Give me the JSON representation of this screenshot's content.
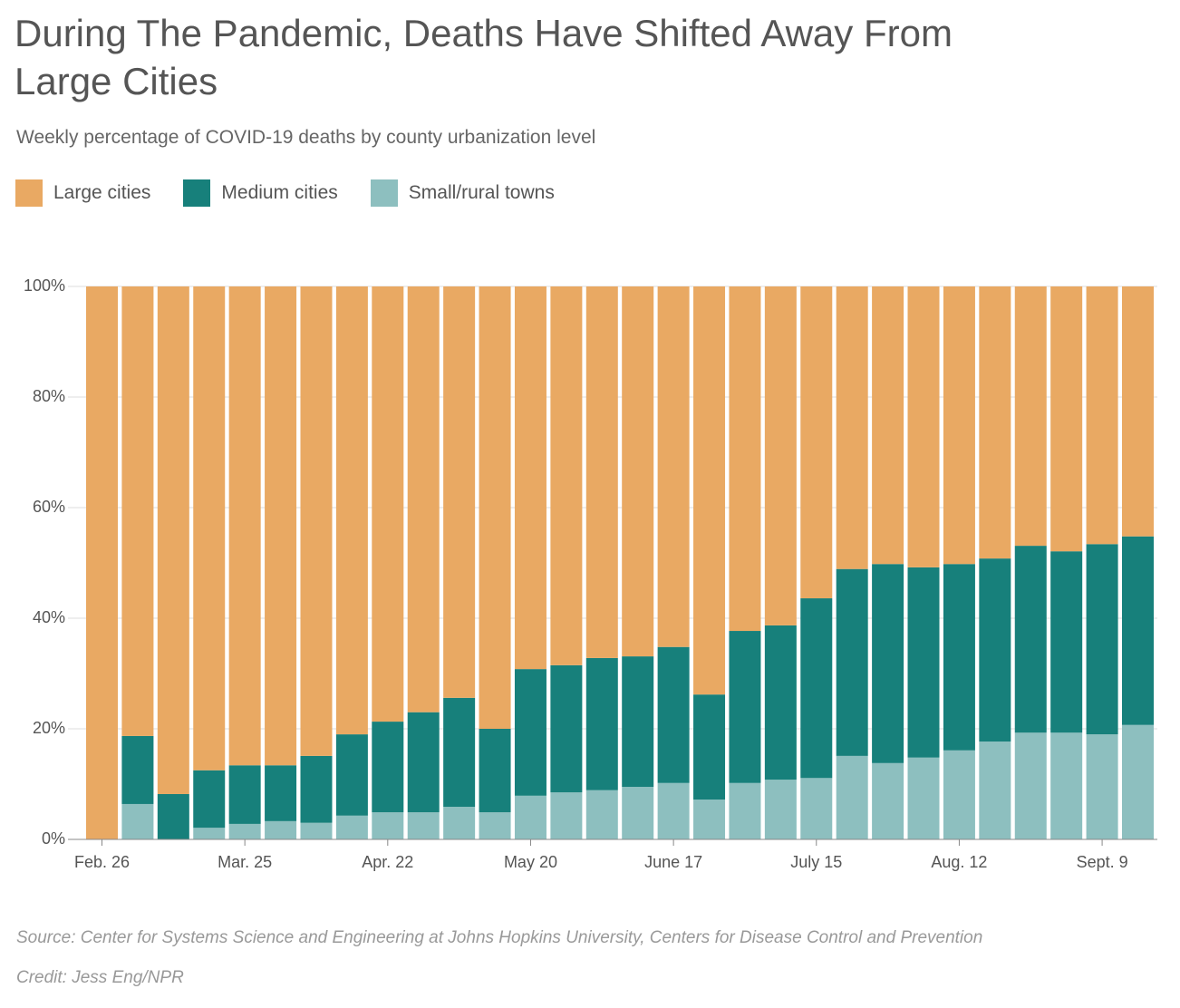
{
  "chart_data": {
    "type": "stacked_bar",
    "title": "During The Pandemic, Deaths Have Shifted Away From Large Cities",
    "subtitle": "Weekly percentage of COVID-19 deaths by county urbanization level",
    "categories": [
      "Feb. 26",
      null,
      null,
      null,
      "Mar. 25",
      null,
      null,
      null,
      "Apr. 22",
      null,
      null,
      null,
      "May 20",
      null,
      null,
      null,
      "June 17",
      null,
      null,
      null,
      "July 15",
      null,
      null,
      null,
      "Aug. 12",
      null,
      null,
      null,
      "Sept. 9",
      null
    ],
    "series": [
      {
        "name": "Large cities",
        "color": "#e9a963",
        "values": [
          100,
          81.3,
          91.8,
          87.5,
          86.6,
          86.6,
          84.9,
          81.0,
          78.7,
          77.0,
          74.4,
          80.0,
          69.2,
          68.5,
          67.2,
          66.9,
          65.2,
          73.8,
          62.3,
          61.3,
          56.4,
          51.1,
          50.2,
          50.8,
          50.2,
          49.2,
          46.9,
          47.9,
          46.6,
          45.2
        ]
      },
      {
        "name": "Medium cities",
        "color": "#17807b",
        "values": [
          0,
          12.3,
          8.2,
          10.4,
          10.6,
          10.1,
          12.1,
          14.7,
          16.4,
          18.1,
          19.7,
          15.1,
          22.9,
          23.0,
          23.9,
          23.6,
          24.6,
          19.0,
          27.5,
          27.9,
          32.5,
          33.8,
          36.0,
          34.4,
          33.7,
          33.1,
          33.8,
          32.8,
          34.4,
          34.1
        ]
      },
      {
        "name": "Small/rural towns",
        "color": "#8dbfbf",
        "values": [
          0,
          6.4,
          0,
          2.1,
          2.8,
          3.3,
          3.0,
          4.3,
          4.9,
          4.9,
          5.9,
          4.9,
          7.9,
          8.5,
          8.9,
          9.5,
          10.2,
          7.2,
          10.2,
          10.8,
          11.1,
          15.1,
          13.8,
          14.8,
          16.1,
          17.7,
          19.3,
          19.3,
          19.0,
          20.7
        ]
      }
    ],
    "ylim": [
      0,
      100
    ],
    "yticks": [
      {
        "value": 0,
        "label": "0%"
      },
      {
        "value": 20,
        "label": "20%"
      },
      {
        "value": 40,
        "label": "40%"
      },
      {
        "value": 60,
        "label": "60%"
      },
      {
        "value": 80,
        "label": "80%"
      },
      {
        "value": 100,
        "label": "100%"
      }
    ],
    "grid": true,
    "source": "Source: Center for Systems Science and Engineering at Johns Hopkins University, Centers for Disease Control and Prevention",
    "credit": "Credit: Jess Eng/NPR"
  }
}
